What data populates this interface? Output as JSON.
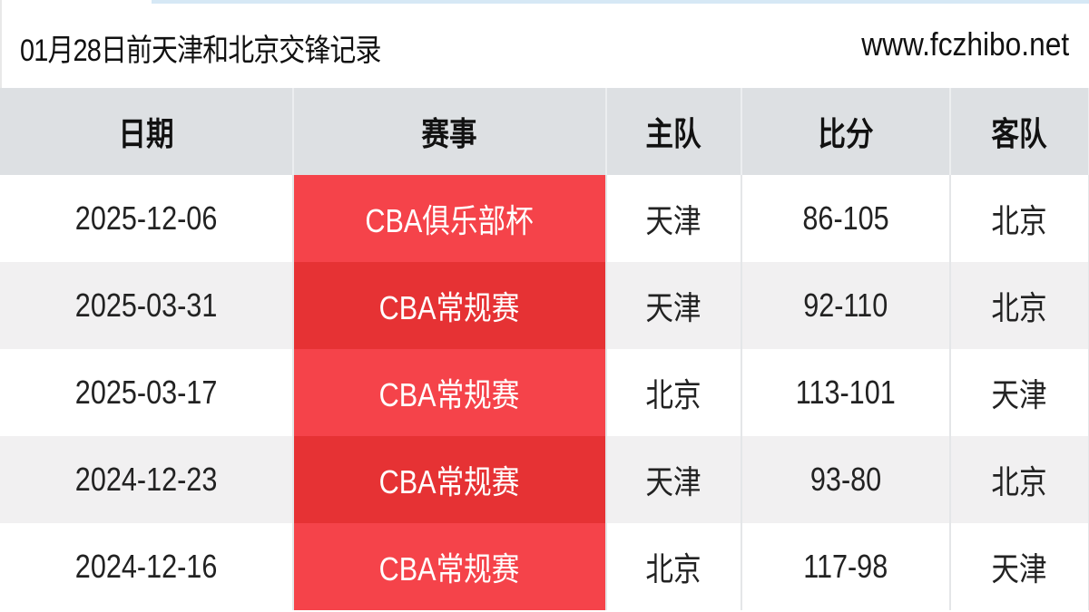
{
  "header": {
    "title": "01月28日前天津和北京交锋记录",
    "site": "www.fczhibo.net"
  },
  "colors": {
    "event_bg": "#f5434a",
    "event_bg_alt": "#e63234",
    "header_bg": "#dde0e3"
  },
  "table": {
    "columns": [
      "日期",
      "赛事",
      "主队",
      "比分",
      "客队"
    ],
    "rows": [
      {
        "date": "2025-12-06",
        "event": "CBA俱乐部杯",
        "home": "天津",
        "score": "86-105",
        "away": "北京"
      },
      {
        "date": "2025-03-31",
        "event": "CBA常规赛",
        "home": "天津",
        "score": "92-110",
        "away": "北京"
      },
      {
        "date": "2025-03-17",
        "event": "CBA常规赛",
        "home": "北京",
        "score": "113-101",
        "away": "天津"
      },
      {
        "date": "2024-12-23",
        "event": "CBA常规赛",
        "home": "天津",
        "score": "93-80",
        "away": "北京"
      },
      {
        "date": "2024-12-16",
        "event": "CBA常规赛",
        "home": "北京",
        "score": "117-98",
        "away": "天津"
      }
    ]
  }
}
